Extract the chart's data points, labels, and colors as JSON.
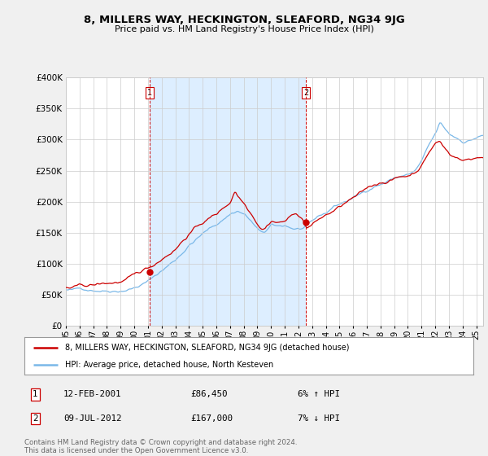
{
  "title": "8, MILLERS WAY, HECKINGTON, SLEAFORD, NG34 9JG",
  "subtitle": "Price paid vs. HM Land Registry's House Price Index (HPI)",
  "ylim": [
    0,
    400000
  ],
  "xlim_start": 1995.0,
  "xlim_end": 2025.5,
  "hpi_color": "#7ab8e8",
  "price_color": "#cc0000",
  "shaded_color": "#ddeeff",
  "background_color": "#f0f0f0",
  "plot_bg_color": "#ffffff",
  "grid_color": "#cccccc",
  "transaction1": {
    "date": "12-FEB-2001",
    "price": 86450,
    "x": 2001.12,
    "label": "1",
    "hpi_pct": "6% ↑ HPI"
  },
  "transaction2": {
    "date": "09-JUL-2012",
    "price": 167000,
    "x": 2012.54,
    "label": "2",
    "hpi_pct": "7% ↓ HPI"
  },
  "legend_house_label": "8, MILLERS WAY, HECKINGTON, SLEAFORD, NG34 9JG (detached house)",
  "legend_hpi_label": "HPI: Average price, detached house, North Kesteven",
  "footnote": "Contains HM Land Registry data © Crown copyright and database right 2024.\nThis data is licensed under the Open Government Licence v3.0.",
  "x_tick_labels": [
    "95",
    "96",
    "97",
    "98",
    "99",
    "00",
    "01",
    "02",
    "03",
    "04",
    "05",
    "06",
    "07",
    "08",
    "09",
    "10",
    "11",
    "12",
    "13",
    "14",
    "15",
    "16",
    "17",
    "18",
    "19",
    "20",
    "21",
    "22",
    "23",
    "24",
    "25"
  ],
  "x_tick_positions": [
    1995,
    1996,
    1997,
    1998,
    1999,
    2000,
    2001,
    2002,
    2003,
    2004,
    2005,
    2006,
    2007,
    2008,
    2009,
    2010,
    2011,
    2012,
    2013,
    2014,
    2015,
    2016,
    2017,
    2018,
    2019,
    2020,
    2021,
    2022,
    2023,
    2024,
    2025
  ]
}
